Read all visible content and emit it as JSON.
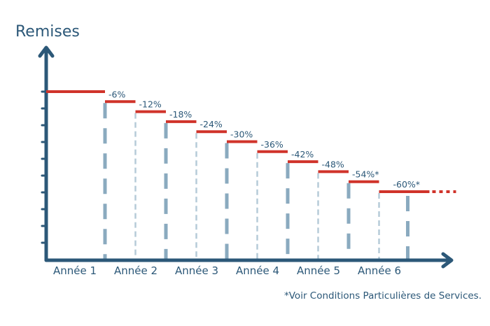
{
  "chart_data": {
    "type": "step",
    "title": "Remises",
    "categories": [
      "Année 1",
      "Année 2",
      "Année 3",
      "Année 4",
      "Année 5",
      "Année 6"
    ],
    "steps": [
      {
        "value": 0,
        "label": ""
      },
      {
        "value": -6,
        "label": "-6%"
      },
      {
        "value": -12,
        "label": "-12%"
      },
      {
        "value": -18,
        "label": "-18%"
      },
      {
        "value": -24,
        "label": "-24%"
      },
      {
        "value": -30,
        "label": "-30%"
      },
      {
        "value": -36,
        "label": "-36%"
      },
      {
        "value": -42,
        "label": "-42%"
      },
      {
        "value": -48,
        "label": "-48%"
      },
      {
        "value": -54,
        "label": "-54%*"
      },
      {
        "value": -60,
        "label": "-60%*"
      }
    ],
    "y_unit": "%",
    "footnote": "*Voir Conditions Particulières de Services.",
    "colors": {
      "axis": "#2c5878",
      "step": "#d0332a",
      "dash_strong": "#8aaabf",
      "dash_light": "#b6cbd8"
    }
  }
}
